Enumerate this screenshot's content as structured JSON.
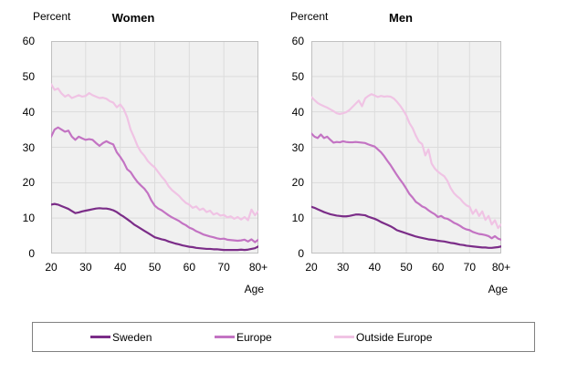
{
  "legend": {
    "items": [
      {
        "label": "Sweden",
        "color": "#7b2d88"
      },
      {
        "label": "Europe",
        "color": "#c373c3"
      },
      {
        "label": "Outside Europe",
        "color": "#f0c3e4"
      }
    ]
  },
  "style_colors": {
    "plot_background": "#f0f0f0",
    "gridline": "#dcdcdc",
    "plot_border": "#c0c0c0",
    "legend_border": "#808080"
  },
  "chart_data": [
    {
      "type": "line",
      "title": "Women",
      "ylabel": "Percent",
      "xlabel": "Age",
      "ylim": [
        0,
        60
      ],
      "y_tick_step": 10,
      "y_tick_labels": [
        "0",
        "10",
        "20",
        "30",
        "40",
        "50",
        "60"
      ],
      "x_range": [
        20,
        80
      ],
      "x_tick_labels": [
        "20",
        "30",
        "40",
        "50",
        "60",
        "70",
        "80+"
      ],
      "grid": true,
      "legend_position": "bottom-shared",
      "series": [
        {
          "name": "Sweden",
          "color": "#7b2d88",
          "values": [
            13.8,
            14.0,
            13.8,
            13.4,
            13.0,
            12.6,
            12.0,
            11.4,
            11.6,
            11.9,
            12.1,
            12.3,
            12.5,
            12.7,
            12.8,
            12.7,
            12.7,
            12.5,
            12.2,
            11.7,
            11.0,
            10.4,
            9.7,
            9.0,
            8.2,
            7.6,
            7.0,
            6.4,
            5.8,
            5.2,
            4.6,
            4.3,
            4.0,
            3.8,
            3.4,
            3.1,
            2.8,
            2.6,
            2.3,
            2.1,
            1.9,
            1.8,
            1.6,
            1.5,
            1.4,
            1.3,
            1.3,
            1.2,
            1.2,
            1.1,
            1.0,
            1.0,
            1.0,
            1.0,
            1.0,
            1.1,
            1.0,
            1.1,
            1.3,
            1.5,
            2.0
          ]
        },
        {
          "name": "Europe",
          "color": "#c373c3",
          "values": [
            33.0,
            35.0,
            35.6,
            35.0,
            34.4,
            34.7,
            33.0,
            32.1,
            33.0,
            32.5,
            32.1,
            32.3,
            32.1,
            31.2,
            30.4,
            31.2,
            31.7,
            31.2,
            30.8,
            28.6,
            27.3,
            25.8,
            23.8,
            23.0,
            21.5,
            20.2,
            19.2,
            18.3,
            17.0,
            15.0,
            13.5,
            12.7,
            12.2,
            11.5,
            10.8,
            10.2,
            9.7,
            9.2,
            8.5,
            8.0,
            7.3,
            6.9,
            6.3,
            5.9,
            5.4,
            5.1,
            4.8,
            4.6,
            4.3,
            4.1,
            4.2,
            3.9,
            3.8,
            3.7,
            3.6,
            3.7,
            3.9,
            3.4,
            4.0,
            3.2,
            3.9
          ]
        },
        {
          "name": "Outside Europe",
          "color": "#f0c3e4",
          "values": [
            47.8,
            46.2,
            46.6,
            45.2,
            44.3,
            44.8,
            43.9,
            44.3,
            44.7,
            44.3,
            44.5,
            45.3,
            44.7,
            44.3,
            43.9,
            44.0,
            43.7,
            43.0,
            42.6,
            41.3,
            42.1,
            40.8,
            38.5,
            35.0,
            32.8,
            30.4,
            28.7,
            27.6,
            26.1,
            25.1,
            24.3,
            23.0,
            21.7,
            20.6,
            19.0,
            17.9,
            17.1,
            16.3,
            15.2,
            14.3,
            13.8,
            12.9,
            13.3,
            12.3,
            12.7,
            11.7,
            12.1,
            11.0,
            11.4,
            10.7,
            10.9,
            10.2,
            10.5,
            9.8,
            10.3,
            9.6,
            10.3,
            9.4,
            12.4,
            10.8,
            11.9
          ]
        }
      ]
    },
    {
      "type": "line",
      "title": "Men",
      "ylabel": "Percent",
      "xlabel": "Age",
      "ylim": [
        0,
        60
      ],
      "y_tick_step": 10,
      "y_tick_labels": [
        "0",
        "10",
        "20",
        "30",
        "40",
        "50",
        "60"
      ],
      "x_range": [
        20,
        80
      ],
      "x_tick_labels": [
        "20",
        "30",
        "40",
        "50",
        "60",
        "70",
        "80+"
      ],
      "grid": true,
      "legend_position": "bottom-shared",
      "series": [
        {
          "name": "Sweden",
          "color": "#7b2d88",
          "values": [
            13.2,
            12.9,
            12.5,
            12.1,
            11.7,
            11.4,
            11.1,
            10.9,
            10.7,
            10.6,
            10.5,
            10.5,
            10.6,
            10.8,
            11.0,
            11.0,
            10.9,
            10.8,
            10.4,
            10.1,
            9.8,
            9.4,
            8.9,
            8.5,
            8.1,
            7.7,
            7.2,
            6.6,
            6.3,
            6.0,
            5.7,
            5.4,
            5.1,
            4.8,
            4.6,
            4.4,
            4.2,
            4.0,
            3.9,
            3.8,
            3.6,
            3.5,
            3.4,
            3.2,
            3.0,
            2.9,
            2.7,
            2.5,
            2.4,
            2.2,
            2.1,
            2.0,
            1.9,
            1.8,
            1.7,
            1.7,
            1.6,
            1.6,
            1.7,
            1.8,
            2.0
          ]
        },
        {
          "name": "Europe",
          "color": "#c373c3",
          "values": [
            33.9,
            33.0,
            32.6,
            33.6,
            32.6,
            33.0,
            32.1,
            31.3,
            31.5,
            31.4,
            31.7,
            31.5,
            31.4,
            31.4,
            31.5,
            31.4,
            31.3,
            31.2,
            30.8,
            30.5,
            30.2,
            29.4,
            28.6,
            27.5,
            26.2,
            25.0,
            23.6,
            22.2,
            20.9,
            19.7,
            18.3,
            16.8,
            15.8,
            14.6,
            14.0,
            13.3,
            12.9,
            12.2,
            11.6,
            11.1,
            10.3,
            10.6,
            10.0,
            9.8,
            9.3,
            8.7,
            8.3,
            7.8,
            7.2,
            6.8,
            6.6,
            6.1,
            5.8,
            5.5,
            5.4,
            5.2,
            4.9,
            4.3,
            4.9,
            4.2,
            3.9
          ]
        },
        {
          "name": "Outside Europe",
          "color": "#f0c3e4",
          "values": [
            44.2,
            43.3,
            42.5,
            42.0,
            41.6,
            41.2,
            40.7,
            40.2,
            39.6,
            39.4,
            39.6,
            39.9,
            40.5,
            41.4,
            42.3,
            43.2,
            41.6,
            43.8,
            44.5,
            45.0,
            44.6,
            44.2,
            44.5,
            44.3,
            44.4,
            44.3,
            43.8,
            42.9,
            41.8,
            40.5,
            39.0,
            36.8,
            35.4,
            33.3,
            31.6,
            30.9,
            27.7,
            29.4,
            25.4,
            24.0,
            23.1,
            22.4,
            21.8,
            20.5,
            18.5,
            17.1,
            16.2,
            15.5,
            14.4,
            13.6,
            13.2,
            11.2,
            12.4,
            10.6,
            11.9,
            9.5,
            10.6,
            8.2,
            9.4,
            7.2,
            8.2
          ]
        }
      ]
    }
  ]
}
